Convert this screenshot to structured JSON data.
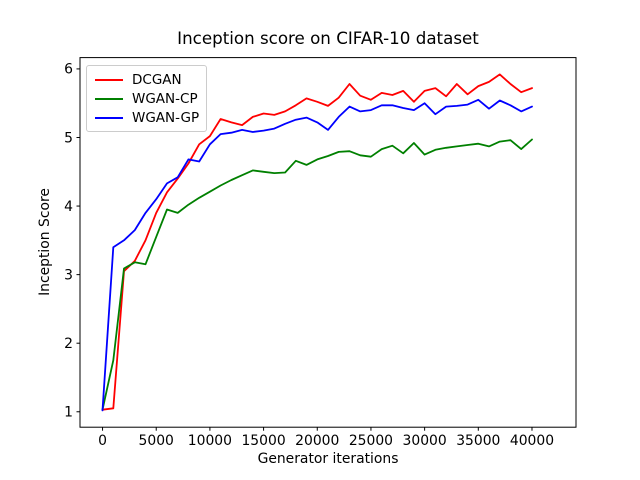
{
  "chart_data": {
    "type": "line",
    "title": "Inception score on CIFAR-10 dataset",
    "xlabel": "Generator iterations",
    "ylabel": "Inception Score",
    "grid": false,
    "legend_position": "upper left",
    "xlim": [
      -2100,
      44100
    ],
    "ylim": [
      0.775,
      6.165
    ],
    "xticks": [
      0,
      5000,
      10000,
      15000,
      20000,
      25000,
      30000,
      35000,
      40000
    ],
    "xtick_labels": [
      "0",
      "5000",
      "10000",
      "15000",
      "20000",
      "25000",
      "30000",
      "35000",
      "40000"
    ],
    "yticks": [
      1,
      2,
      3,
      4,
      5,
      6
    ],
    "ytick_labels": [
      "1",
      "2",
      "3",
      "4",
      "5",
      "6"
    ],
    "x": [
      0,
      1000,
      2000,
      3000,
      4000,
      5000,
      6000,
      7000,
      8000,
      9000,
      10000,
      11000,
      12000,
      13000,
      14000,
      15000,
      16000,
      17000,
      18000,
      19000,
      20000,
      21000,
      22000,
      23000,
      24000,
      25000,
      26000,
      27000,
      28000,
      29000,
      30000,
      31000,
      32000,
      33000,
      34000,
      35000,
      36000,
      37000,
      38000,
      39000,
      40000
    ],
    "series": [
      {
        "name": "DCGAN",
        "color": "#ff0000",
        "values": [
          1.03,
          1.05,
          3.05,
          3.2,
          3.5,
          3.9,
          4.2,
          4.4,
          4.62,
          4.9,
          5.02,
          5.27,
          5.22,
          5.18,
          5.3,
          5.35,
          5.33,
          5.38,
          5.47,
          5.57,
          5.52,
          5.46,
          5.58,
          5.78,
          5.61,
          5.55,
          5.65,
          5.62,
          5.68,
          5.52,
          5.68,
          5.72,
          5.6,
          5.78,
          5.63,
          5.75,
          5.81,
          5.92,
          5.78,
          5.66,
          5.72
        ]
      },
      {
        "name": "WGAN-CP",
        "color": "#008000",
        "values": [
          1.03,
          1.75,
          3.09,
          3.18,
          3.15,
          3.55,
          3.95,
          3.9,
          4.02,
          4.12,
          4.21,
          4.3,
          4.38,
          4.45,
          4.52,
          4.5,
          4.48,
          4.49,
          4.66,
          4.6,
          4.68,
          4.73,
          4.79,
          4.8,
          4.74,
          4.72,
          4.83,
          4.88,
          4.77,
          4.92,
          4.75,
          4.82,
          4.85,
          4.87,
          4.89,
          4.91,
          4.87,
          4.94,
          4.96,
          4.83,
          4.97
        ]
      },
      {
        "name": "WGAN-GP",
        "color": "#0000ff",
        "values": [
          1.02,
          3.4,
          3.5,
          3.65,
          3.9,
          4.1,
          4.33,
          4.42,
          4.68,
          4.65,
          4.9,
          5.05,
          5.07,
          5.11,
          5.08,
          5.1,
          5.13,
          5.2,
          5.26,
          5.29,
          5.22,
          5.11,
          5.3,
          5.45,
          5.38,
          5.4,
          5.47,
          5.47,
          5.43,
          5.4,
          5.5,
          5.34,
          5.45,
          5.46,
          5.48,
          5.55,
          5.42,
          5.54,
          5.47,
          5.38,
          5.45
        ]
      }
    ]
  },
  "layout_colors": {
    "background": "#ffffff",
    "spine": "#000000",
    "tick_label": "#000000",
    "legend_border": "#cccccc"
  }
}
